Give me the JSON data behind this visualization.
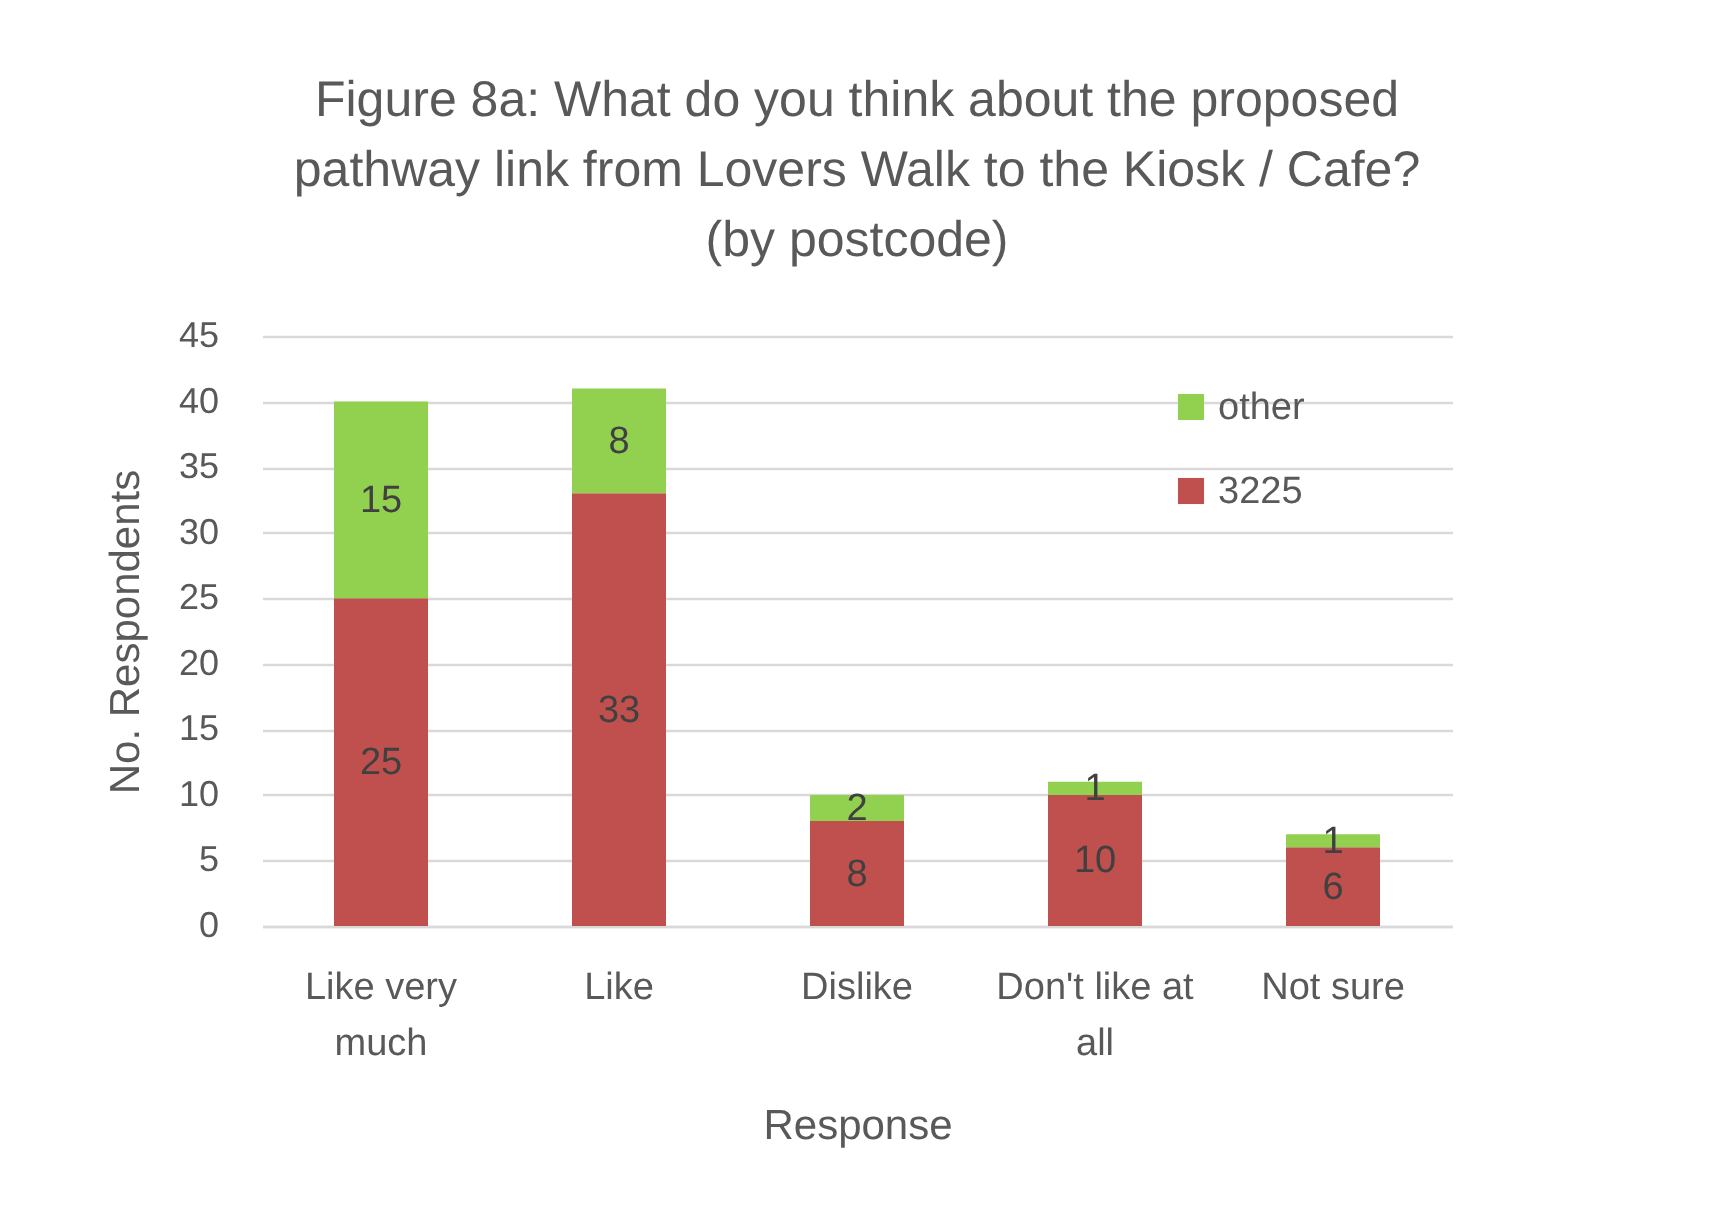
{
  "chart_data": {
    "type": "bar",
    "title": "Figure 8a: What do you think about the proposed pathway link from Lovers Walk to the Kiosk / Cafe? (by postcode)",
    "xlabel": "Response",
    "ylabel": "No. Respondents",
    "categories": [
      "Like very much",
      "Like",
      "Dislike",
      "Don't like at all",
      "Not sure"
    ],
    "series": [
      {
        "name": "3225",
        "color": "#c0504d",
        "values": [
          25,
          33,
          8,
          10,
          6
        ]
      },
      {
        "name": "other",
        "color": "#92d050",
        "values": [
          15,
          8,
          2,
          1,
          1
        ]
      }
    ],
    "stacked": true,
    "data_labels": true,
    "ylim": [
      0,
      45
    ],
    "yticks": [
      0,
      5,
      10,
      15,
      20,
      25,
      30,
      35,
      40,
      45
    ],
    "grid": "y",
    "legend": "top right"
  }
}
